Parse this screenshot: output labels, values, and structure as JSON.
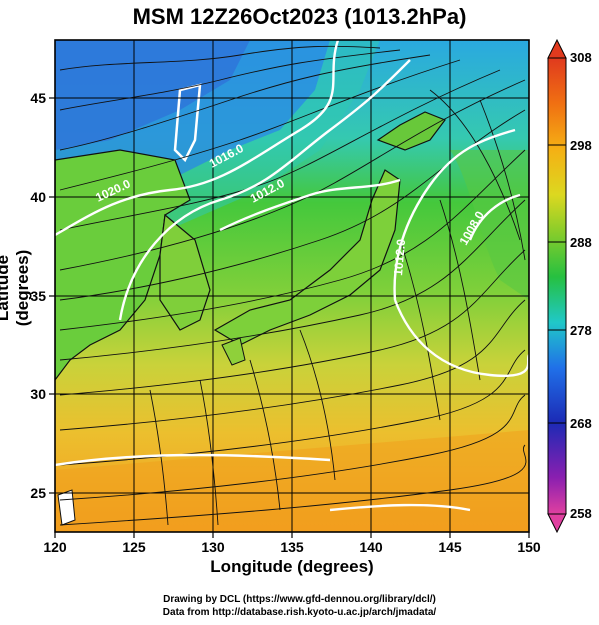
{
  "title": "MSM 12Z26Oct2023 (1013.2hPa)",
  "axes": {
    "xlabel": "Longitude (degrees)",
    "ylabel": "Latitude  (degrees)",
    "xlim": [
      120,
      150
    ],
    "ylim": [
      22.5,
      47.5
    ],
    "xticks": [
      "120",
      "125",
      "130",
      "135",
      "140",
      "145",
      "150"
    ],
    "yticks": [
      "25",
      "30",
      "35",
      "40",
      "45"
    ]
  },
  "colorbar": {
    "ticks": [
      "308",
      "298",
      "288",
      "278",
      "268",
      "258"
    ],
    "range": [
      258,
      308
    ],
    "colors": [
      "#e0409a",
      "#6b1fa8",
      "#1c2fb0",
      "#1f78e6",
      "#20c8c8",
      "#26c23c",
      "#9acd2a",
      "#e6d820",
      "#f5a614",
      "#f06a12",
      "#e03a1e"
    ]
  },
  "isobars": [
    {
      "label": "1020.0"
    },
    {
      "label": "1016.0"
    },
    {
      "label": "1012.0"
    },
    {
      "label": "1012.0"
    },
    {
      "label": "1008.0"
    }
  ],
  "credits": {
    "line1": "Drawing by DCL (https://www.gfd-dennou.org/library/dcl/)",
    "line2": "Data from http://database.rish.kyoto-u.ac.jp/arch/jmadata/"
  }
}
